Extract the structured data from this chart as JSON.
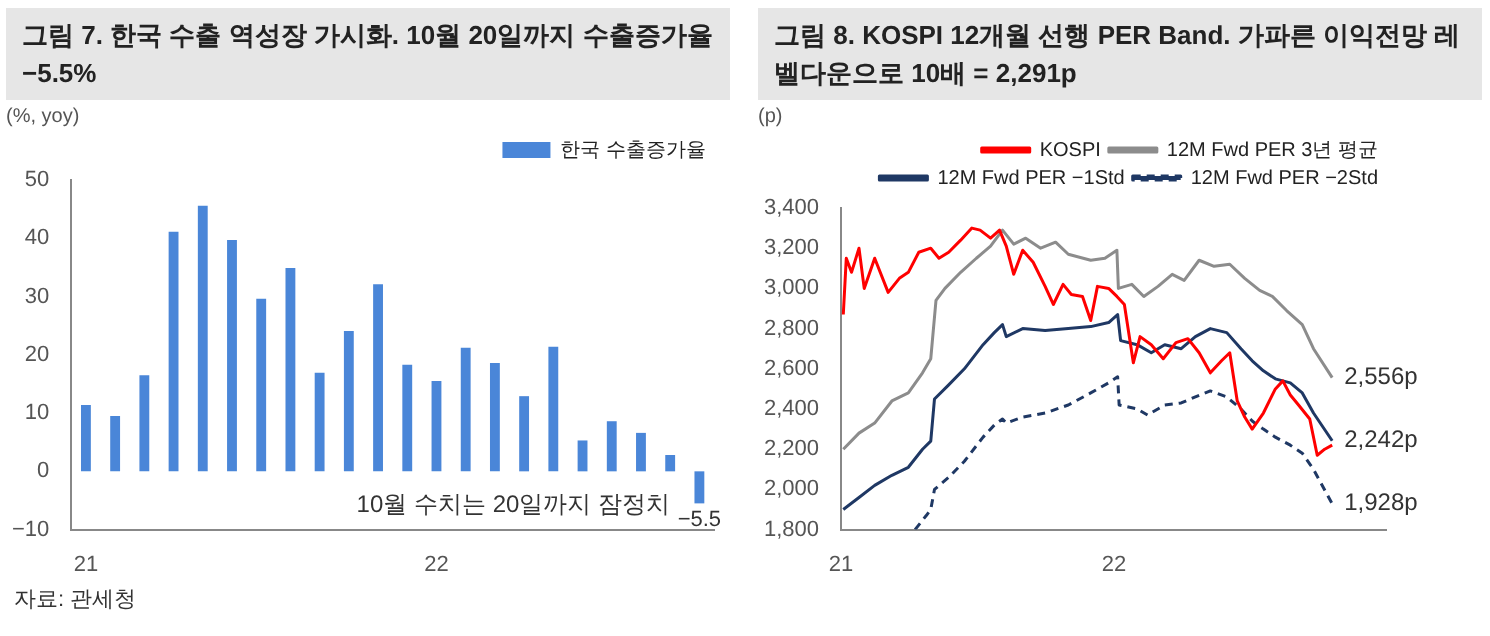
{
  "chart_data": [
    {
      "type": "bar",
      "title": "그림 7. 한국 수출 역성장 가시화. 10월 20일까지 수출증가율 −5.5%",
      "ylabel": "(%, yoy)",
      "categories": [
        "21",
        null,
        null,
        null,
        null,
        null,
        null,
        null,
        null,
        null,
        null,
        null,
        "22",
        null,
        null,
        null,
        null,
        null,
        null,
        null,
        null,
        null
      ],
      "series": [
        {
          "name": "한국 수출증가율",
          "color": "#4a86d8",
          "values": [
            11.4,
            9.5,
            16.5,
            41.1,
            45.6,
            39.7,
            29.6,
            34.9,
            16.9,
            24.1,
            32.1,
            18.3,
            15.5,
            21.2,
            18.6,
            12.9,
            21.4,
            5.3,
            8.6,
            6.6,
            2.8,
            -5.5
          ],
          "value_labels": [
            null,
            null,
            null,
            null,
            null,
            null,
            null,
            null,
            null,
            null,
            null,
            null,
            null,
            null,
            null,
            null,
            null,
            null,
            null,
            null,
            null,
            "−5.5"
          ]
        }
      ],
      "ylim": [
        -10,
        50
      ],
      "yticks": [
        {
          "value": -10,
          "label": "−10"
        },
        0,
        10,
        20,
        30,
        40,
        50
      ],
      "grid": false,
      "legend": "top right",
      "annotations": [
        "10월 수치는 20일까지 잠정치",
        "자료: 관세청"
      ]
    },
    {
      "type": "line",
      "title": "그림 8. KOSPI 12개월 선행 PER Band. 가파른 이익전망 레벨다운으로 10배 = 2,291p",
      "ylabel": "(p)",
      "xlim": [
        "2021-01-01",
        "2022-12-31"
      ],
      "xticks": [
        {
          "value": "2021-01-01",
          "label": "21"
        },
        {
          "value": "2022-01-01",
          "label": "22"
        }
      ],
      "ylim": [
        1800,
        3400
      ],
      "yticks": [
        {
          "value": 1800,
          "label": "1,800"
        },
        {
          "value": 2000,
          "label": "2,000"
        },
        {
          "value": 2200,
          "label": "2,200"
        },
        {
          "value": 2400,
          "label": "2,400"
        },
        {
          "value": 2600,
          "label": "2,600"
        },
        {
          "value": 2800,
          "label": "2,800"
        },
        {
          "value": 3000,
          "label": "3,000"
        },
        {
          "value": 3200,
          "label": "3,200"
        },
        {
          "value": 3400,
          "label": "3,400"
        }
      ],
      "grid": false,
      "legend": "top right",
      "marker": "none",
      "series": [
        {
          "name": "KOSPI",
          "color": "#ff0000",
          "x": [
            "2021-01-04",
            "2021-01-08",
            "2021-01-15",
            "2021-01-25",
            "2021-02-01",
            "2021-02-15",
            "2021-03-05",
            "2021-03-20",
            "2021-04-01",
            "2021-04-15",
            "2021-05-01",
            "2021-05-12",
            "2021-05-25",
            "2021-06-10",
            "2021-06-25",
            "2021-07-06",
            "2021-07-20",
            "2021-08-01",
            "2021-08-10",
            "2021-08-20",
            "2021-09-01",
            "2021-09-15",
            "2021-10-01",
            "2021-10-12",
            "2021-10-25",
            "2021-11-05",
            "2021-11-20",
            "2021-12-01",
            "2021-12-10",
            "2021-12-25",
            "2022-01-05",
            "2022-01-15",
            "2022-01-27",
            "2022-02-05",
            "2022-02-20",
            "2022-03-08",
            "2022-03-25",
            "2022-04-10",
            "2022-04-25",
            "2022-05-10",
            "2022-05-25",
            "2022-06-05",
            "2022-06-15",
            "2022-06-25",
            "2022-07-05",
            "2022-07-20",
            "2022-08-05",
            "2022-08-15",
            "2022-08-25",
            "2022-09-05",
            "2022-09-20",
            "2022-09-30",
            "2022-10-10",
            "2022-10-20"
          ],
          "values": [
            2870,
            3150,
            3080,
            3200,
            3000,
            3150,
            2980,
            3050,
            3080,
            3180,
            3200,
            3150,
            3180,
            3240,
            3300,
            3290,
            3250,
            3290,
            3210,
            3070,
            3190,
            3130,
            3010,
            2920,
            3020,
            2970,
            2960,
            2840,
            3010,
            3000,
            2960,
            2920,
            2630,
            2760,
            2720,
            2650,
            2730,
            2750,
            2680,
            2580,
            2640,
            2680,
            2440,
            2360,
            2300,
            2380,
            2500,
            2540,
            2470,
            2420,
            2350,
            2170,
            2200,
            2220
          ]
        },
        {
          "name": "12M Fwd PER 3년 평균",
          "color": "#8c8c8c",
          "x": [
            "2021-01-04",
            "2021-01-25",
            "2021-02-15",
            "2021-03-10",
            "2021-04-01",
            "2021-04-20",
            "2021-05-01",
            "2021-05-08",
            "2021-05-20",
            "2021-06-10",
            "2021-07-01",
            "2021-07-20",
            "2021-08-05",
            "2021-08-20",
            "2021-09-05",
            "2021-09-25",
            "2021-10-15",
            "2021-11-01",
            "2021-12-01",
            "2021-12-20",
            "2022-01-05",
            "2022-01-07",
            "2022-01-25",
            "2022-02-10",
            "2022-03-01",
            "2022-03-20",
            "2022-04-05",
            "2022-04-25",
            "2022-05-15",
            "2022-06-05",
            "2022-06-25",
            "2022-07-15",
            "2022-08-01",
            "2022-08-20",
            "2022-09-10",
            "2022-09-25",
            "2022-10-20"
          ],
          "values": [
            2200,
            2280,
            2330,
            2440,
            2480,
            2580,
            2650,
            2940,
            3000,
            3080,
            3150,
            3210,
            3290,
            3220,
            3250,
            3200,
            3230,
            3170,
            3140,
            3150,
            3190,
            3000,
            3020,
            2960,
            3010,
            3070,
            3040,
            3140,
            3110,
            3120,
            3050,
            2990,
            2960,
            2890,
            2820,
            2700,
            2556
          ]
        },
        {
          "name": "12M Fwd PER −1Std",
          "color": "#1f3864",
          "x": [
            "2021-01-04",
            "2021-01-25",
            "2021-02-15",
            "2021-03-10",
            "2021-04-01",
            "2021-04-20",
            "2021-05-01",
            "2021-05-06",
            "2021-05-25",
            "2021-06-15",
            "2021-07-10",
            "2021-07-25",
            "2021-08-05",
            "2021-08-10",
            "2021-09-01",
            "2021-10-01",
            "2021-11-01",
            "2021-12-01",
            "2021-12-25",
            "2022-01-06",
            "2022-01-10",
            "2022-02-01",
            "2022-02-20",
            "2022-03-10",
            "2022-04-01",
            "2022-04-20",
            "2022-05-10",
            "2022-06-01",
            "2022-06-20",
            "2022-07-05",
            "2022-07-20",
            "2022-08-05",
            "2022-08-25",
            "2022-09-10",
            "2022-09-25",
            "2022-10-20"
          ],
          "values": [
            1900,
            1960,
            2020,
            2070,
            2110,
            2200,
            2240,
            2450,
            2520,
            2600,
            2720,
            2780,
            2820,
            2760,
            2800,
            2790,
            2800,
            2810,
            2830,
            2870,
            2740,
            2720,
            2680,
            2720,
            2700,
            2760,
            2800,
            2780,
            2700,
            2640,
            2590,
            2550,
            2530,
            2480,
            2380,
            2242
          ]
        },
        {
          "name": "12M Fwd PER −2Std",
          "color": "#1f3864",
          "line_style": "dashed",
          "x": [
            "2021-04-10",
            "2021-04-25",
            "2021-05-01",
            "2021-05-06",
            "2021-05-25",
            "2021-06-15",
            "2021-07-10",
            "2021-07-25",
            "2021-08-05",
            "2021-08-10",
            "2021-09-01",
            "2021-10-01",
            "2021-11-01",
            "2021-12-01",
            "2021-12-25",
            "2022-01-06",
            "2022-01-08",
            "2022-02-01",
            "2022-02-15",
            "2022-03-10",
            "2022-04-01",
            "2022-04-20",
            "2022-05-10",
            "2022-06-01",
            "2022-06-20",
            "2022-07-05",
            "2022-07-20",
            "2022-08-05",
            "2022-08-25",
            "2022-09-10",
            "2022-09-25",
            "2022-10-20"
          ],
          "values": [
            1800,
            1870,
            1900,
            2000,
            2060,
            2140,
            2260,
            2320,
            2350,
            2330,
            2360,
            2380,
            2420,
            2480,
            2530,
            2560,
            2420,
            2400,
            2370,
            2420,
            2430,
            2460,
            2490,
            2460,
            2400,
            2340,
            2300,
            2260,
            2220,
            2180,
            2100,
            1928
          ]
        }
      ],
      "annotations": [
        {
          "text": "2,556p",
          "x": "2022-10-20",
          "y": 2556
        },
        {
          "text": "2,242p",
          "x": "2022-10-20",
          "y": 2242
        },
        {
          "text": "1,928p",
          "x": "2022-10-20",
          "y": 1928
        }
      ]
    }
  ]
}
